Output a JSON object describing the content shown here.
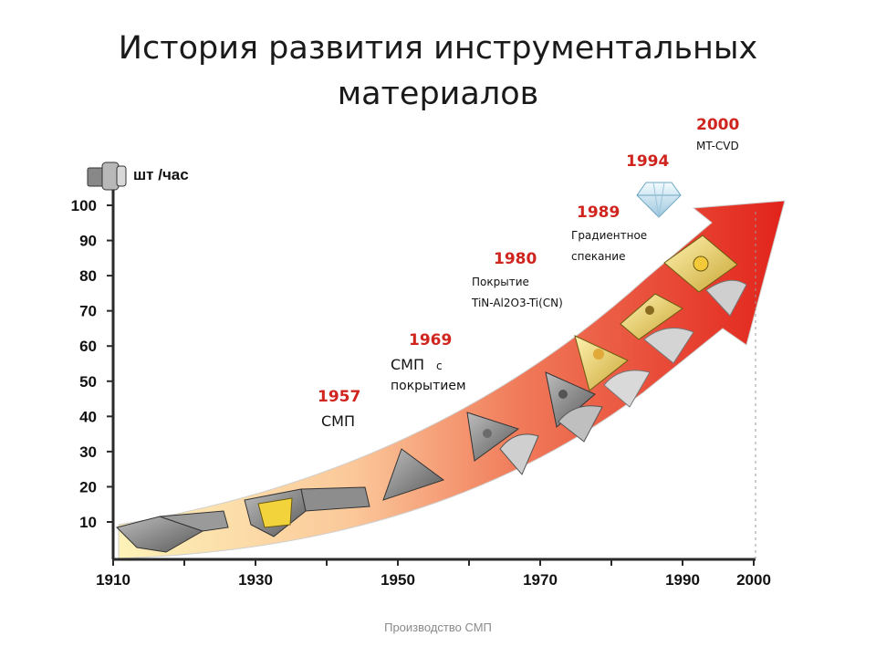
{
  "slide": {
    "title_line1": "История развития инструментальных",
    "title_line2": "материалов",
    "footer": "Производство СМП"
  },
  "chart_data": {
    "type": "area",
    "ylabel": "шт /час",
    "xlabel": "",
    "yticks": [
      "10",
      "20",
      "30",
      "40",
      "50",
      "60",
      "70",
      "80",
      "90",
      "100"
    ],
    "xticks": [
      "1910",
      "1930",
      "1950",
      "1970",
      "1990",
      "2000"
    ],
    "ylim": [
      0,
      100
    ],
    "xlim": [
      1910,
      2000
    ],
    "grid": false,
    "colors": {
      "year_labels": "#d0251e",
      "arrow_start": "#fde79a",
      "arrow_end": "#e62a22"
    },
    "milestones": [
      {
        "year": "1957",
        "label": "СМП"
      },
      {
        "year": "1969",
        "label_main": "СМП",
        "label_small": "с",
        "label_line2": "покрытием"
      },
      {
        "year": "1980",
        "label_line1": "Покрытие",
        "label_line2": "TiN-Al2O3-Ti(CN)"
      },
      {
        "year": "1989",
        "label_line1": "Градиентное",
        "label_line2": "спекание"
      },
      {
        "year": "1994"
      },
      {
        "year": "2000",
        "label": "MT-CVD"
      }
    ]
  }
}
